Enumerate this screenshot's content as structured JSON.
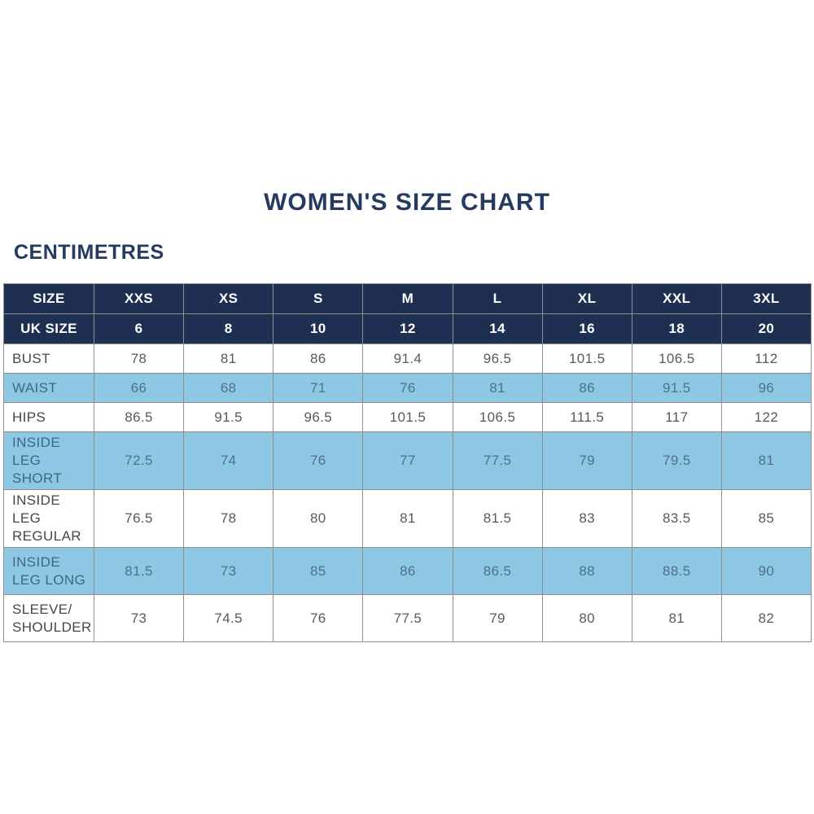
{
  "page": {
    "title": "WOMEN'S SIZE CHART",
    "unit_label": "CENTIMETRES"
  },
  "colors": {
    "header_navy": "#1e2f51",
    "title_navy": "#243a5e",
    "highlight_blue": "#8ec7e3",
    "row_white": "#ffffff",
    "border_gray": "#8f8f8f"
  },
  "chart_data": {
    "type": "table",
    "title": "WOMEN'S SIZE CHART",
    "unit": "CENTIMETRES",
    "header_rows": [
      {
        "label": "SIZE",
        "values": [
          "XXS",
          "XS",
          "S",
          "M",
          "L",
          "XL",
          "XXL",
          "3XL"
        ]
      },
      {
        "label": "UK SIZE",
        "values": [
          "6",
          "8",
          "10",
          "12",
          "14",
          "16",
          "18",
          "20"
        ]
      }
    ],
    "rows": [
      {
        "label": "BUST",
        "values": [
          "78",
          "81",
          "86",
          "91.4",
          "96.5",
          "101.5",
          "106.5",
          "112"
        ],
        "highlight": false,
        "tall": false
      },
      {
        "label": "WAIST",
        "values": [
          "66",
          "68",
          "71",
          "76",
          "81",
          "86",
          "91.5",
          "96"
        ],
        "highlight": true,
        "tall": false
      },
      {
        "label": "HIPS",
        "values": [
          "86.5",
          "91.5",
          "96.5",
          "101.5",
          "106.5",
          "111.5",
          "117",
          "122"
        ],
        "highlight": false,
        "tall": false
      },
      {
        "label": "INSIDE LEG SHORT",
        "values": [
          "72.5",
          "74",
          "76",
          "77",
          "77.5",
          "79",
          "79.5",
          "81"
        ],
        "highlight": true,
        "tall": true
      },
      {
        "label": "INSIDE LEG REGULAR",
        "values": [
          "76.5",
          "78",
          "80",
          "81",
          "81.5",
          "83",
          "83.5",
          "85"
        ],
        "highlight": false,
        "tall": true
      },
      {
        "label": "INSIDE LEG LONG",
        "values": [
          "81.5",
          "73",
          "85",
          "86",
          "86.5",
          "88",
          "88.5",
          "90"
        ],
        "highlight": true,
        "tall": true
      },
      {
        "label": "SLEEVE/ SHOULDER",
        "values": [
          "73",
          "74.5",
          "76",
          "77.5",
          "79",
          "80",
          "81",
          "82"
        ],
        "highlight": false,
        "tall": true
      }
    ]
  }
}
